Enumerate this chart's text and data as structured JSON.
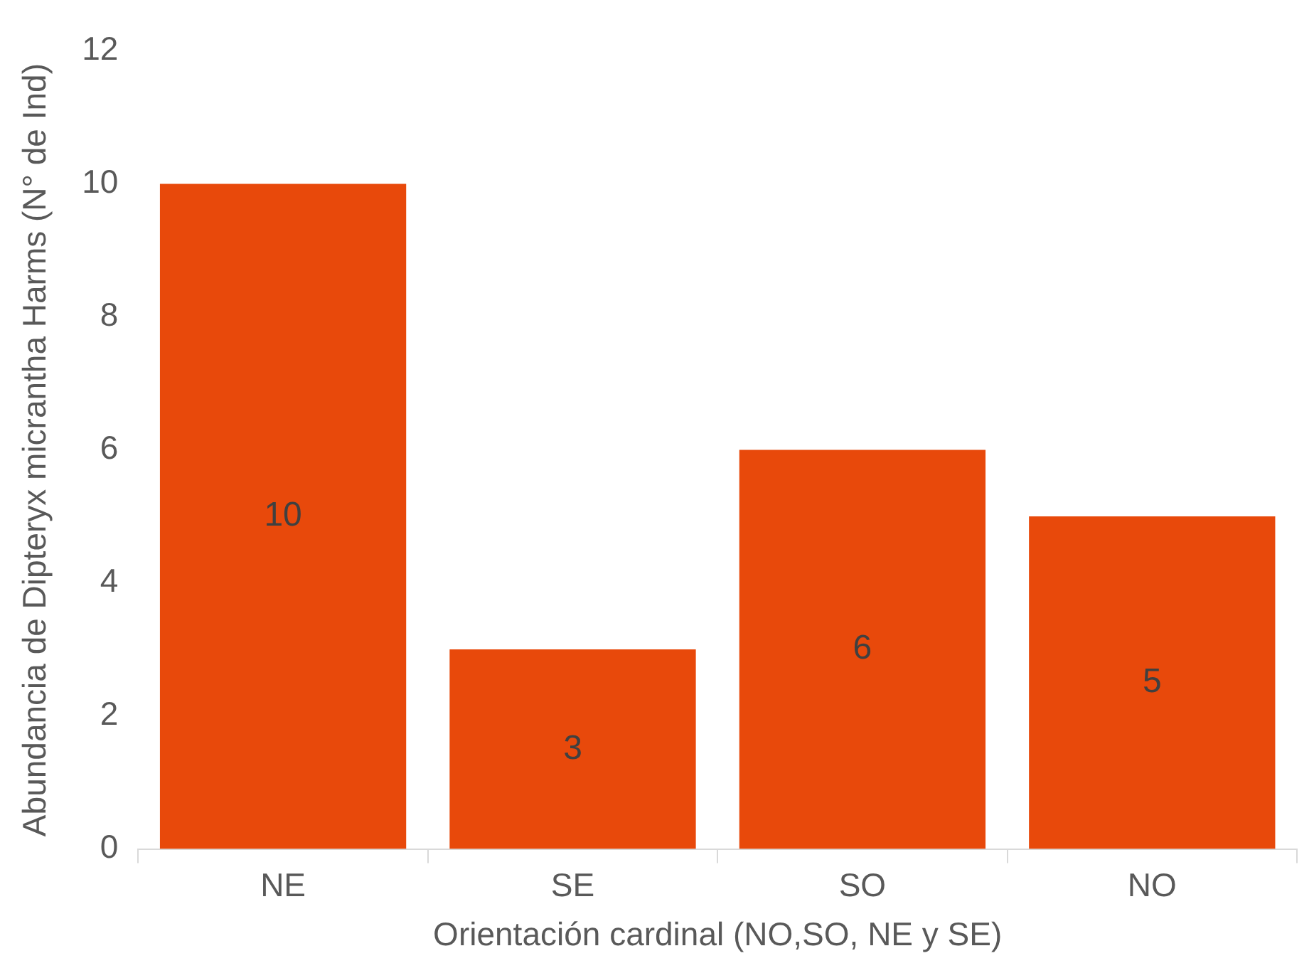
{
  "chart_data": {
    "type": "bar",
    "xlabel": "Orientación cardinal (NO,SO, NE y SE)",
    "ylabel": "Abundancia de Dipteryx micrantha Harms (N° de Ind)",
    "categories": [
      "NE",
      "SE",
      "SO",
      "NO"
    ],
    "values": [
      10,
      3,
      6,
      5
    ],
    "color": "#e8490b",
    "ylim": [
      0,
      12
    ],
    "yticks": [
      0,
      2,
      4,
      6,
      8,
      10,
      12
    ],
    "grid": false,
    "data_labels": true
  }
}
